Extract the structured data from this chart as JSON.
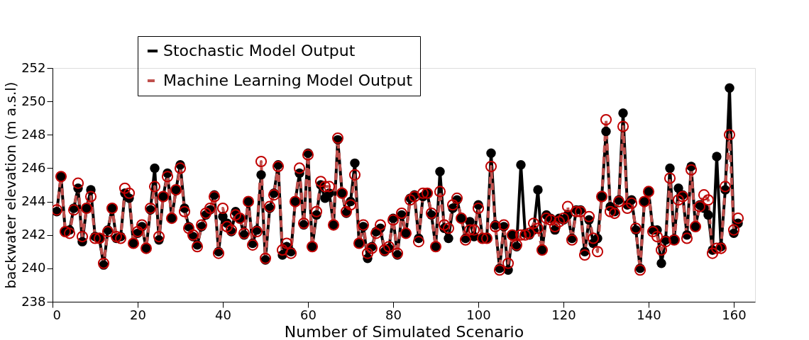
{
  "chart_data": {
    "type": "line",
    "xlabel": "Number of Simulated Scenario",
    "ylabel": "backwater elevation (m a.s.l)",
    "xlim": [
      0,
      165
    ],
    "xticks": [
      0,
      20,
      40,
      60,
      80,
      100,
      120,
      140,
      160
    ],
    "ylim": [
      238,
      252
    ],
    "yticks": [
      238,
      240,
      242,
      244,
      246,
      248,
      250,
      252
    ],
    "grid": false,
    "legend": "top",
    "marker": "circle",
    "x": [
      1,
      2,
      3,
      4,
      5,
      6,
      7,
      8,
      9,
      10,
      11,
      12,
      13,
      14,
      15,
      16,
      17,
      18,
      19,
      20,
      21,
      22,
      23,
      24,
      25,
      26,
      27,
      28,
      29,
      30,
      31,
      32,
      33,
      34,
      35,
      36,
      37,
      38,
      39,
      40,
      41,
      42,
      43,
      44,
      45,
      46,
      47,
      48,
      49,
      50,
      51,
      52,
      53,
      54,
      55,
      56,
      57,
      58,
      59,
      60,
      61,
      62,
      63,
      64,
      65,
      66,
      67,
      68,
      69,
      70,
      71,
      72,
      73,
      74,
      75,
      76,
      77,
      78,
      79,
      80,
      81,
      82,
      83,
      84,
      85,
      86,
      87,
      88,
      89,
      90,
      91,
      92,
      93,
      94,
      95,
      96,
      97,
      98,
      99,
      100,
      101,
      102,
      103,
      104,
      105,
      106,
      107,
      108,
      109,
      110,
      111,
      112,
      113,
      114,
      115,
      116,
      117,
      118,
      119,
      120,
      121,
      122,
      123,
      124,
      125,
      126,
      127,
      128,
      129,
      130,
      131,
      132,
      133,
      134,
      135,
      136,
      137,
      138,
      139,
      140,
      141,
      142,
      143,
      144,
      145,
      146,
      147,
      148,
      149,
      150,
      151,
      152,
      153,
      154,
      155,
      156,
      157,
      158,
      159,
      160,
      161
    ],
    "series": [
      {
        "name": "Stochastic Model Output",
        "color": "#000000",
        "line_style": "solid",
        "values": [
          243.4,
          245.5,
          242.2,
          242.3,
          243.6,
          244.8,
          241.6,
          243.6,
          244.7,
          241.9,
          241.8,
          240.2,
          242.3,
          243.6,
          241.8,
          241.9,
          244.5,
          244.2,
          241.5,
          242.1,
          242.5,
          241.2,
          243.5,
          246.0,
          241.7,
          244.3,
          245.7,
          243.0,
          244.7,
          246.2,
          243.6,
          242.5,
          241.9,
          241.4,
          242.5,
          243.2,
          243.5,
          244.4,
          241.0,
          243.1,
          242.7,
          242.2,
          243.4,
          243.0,
          242.0,
          244.0,
          241.5,
          242.3,
          245.6,
          240.5,
          243.6,
          244.5,
          246.2,
          240.8,
          241.3,
          241.0,
          244.0,
          245.7,
          242.6,
          246.9,
          241.3,
          243.2,
          245.0,
          244.2,
          244.5,
          242.6,
          247.7,
          244.5,
          243.3,
          244.0,
          246.3,
          241.5,
          242.5,
          240.6,
          241.3,
          242.2,
          242.4,
          241.0,
          241.2,
          243.0,
          240.8,
          243.2,
          242.1,
          244.2,
          244.4,
          241.8,
          244.3,
          244.5,
          243.2,
          241.3,
          245.8,
          242.4,
          241.8,
          243.6,
          244.1,
          243.0,
          241.8,
          242.8,
          241.9,
          243.8,
          241.8,
          241.8,
          246.9,
          242.6,
          240.0,
          242.5,
          239.9,
          242.0,
          241.3,
          246.2,
          242.1,
          242.0,
          242.3,
          244.7,
          241.1,
          243.2,
          243.0,
          242.3,
          243.0,
          242.9,
          243.2,
          241.8,
          243.5,
          243.5,
          241.0,
          242.9,
          241.5,
          241.8,
          244.3,
          248.2,
          243.7,
          243.4,
          244.1,
          249.3,
          243.8,
          244.1,
          242.3,
          240.0,
          244.0,
          244.6,
          242.3,
          242.3,
          240.3,
          241.7,
          246.0,
          241.7,
          244.8,
          244.4,
          242.0,
          246.1,
          242.5,
          243.8,
          243.6,
          243.2,
          241.1,
          246.7,
          241.3,
          244.7,
          250.8,
          242.1,
          242.7
        ]
      },
      {
        "name": "Machine Learning Model Output",
        "color": "#c0504d",
        "line_style": "dashed",
        "values": [
          243.5,
          245.5,
          242.2,
          242.1,
          243.5,
          245.1,
          241.9,
          243.6,
          244.3,
          241.8,
          241.8,
          240.3,
          242.2,
          243.6,
          241.9,
          241.8,
          244.8,
          244.5,
          241.5,
          242.2,
          242.6,
          241.2,
          243.6,
          244.9,
          241.9,
          244.3,
          245.5,
          243.0,
          244.7,
          246.0,
          243.4,
          242.4,
          242.0,
          241.3,
          242.6,
          243.3,
          243.6,
          244.3,
          240.9,
          243.6,
          242.5,
          242.3,
          243.2,
          243.0,
          242.1,
          244.0,
          241.4,
          242.2,
          246.4,
          240.6,
          243.7,
          244.4,
          246.1,
          241.1,
          241.5,
          240.9,
          244.0,
          246.0,
          242.7,
          246.8,
          241.3,
          243.4,
          245.2,
          244.9,
          244.9,
          242.6,
          247.8,
          244.5,
          243.4,
          243.8,
          245.6,
          241.5,
          242.6,
          240.9,
          241.2,
          242.1,
          242.6,
          241.1,
          241.3,
          242.9,
          240.9,
          243.3,
          242.1,
          244.1,
          244.3,
          241.6,
          244.5,
          244.5,
          243.3,
          241.3,
          244.6,
          242.6,
          242.4,
          243.8,
          244.2,
          243.0,
          241.7,
          242.3,
          242.3,
          243.6,
          241.8,
          241.8,
          246.1,
          242.5,
          239.9,
          242.6,
          240.3,
          242.0,
          241.4,
          242.0,
          242.0,
          242.1,
          242.7,
          242.4,
          241.1,
          243.0,
          242.9,
          242.5,
          242.8,
          243.0,
          243.7,
          241.7,
          243.4,
          243.4,
          240.8,
          243.1,
          241.8,
          241.0,
          244.3,
          248.9,
          243.4,
          243.3,
          244.0,
          248.5,
          243.6,
          243.9,
          242.4,
          239.9,
          244.0,
          244.6,
          242.2,
          241.9,
          241.1,
          241.6,
          245.4,
          241.7,
          244.1,
          244.3,
          241.8,
          245.9,
          242.5,
          243.7,
          244.4,
          244.1,
          240.9,
          241.2,
          241.2,
          244.9,
          248.0,
          242.3,
          243.0
        ]
      }
    ]
  }
}
